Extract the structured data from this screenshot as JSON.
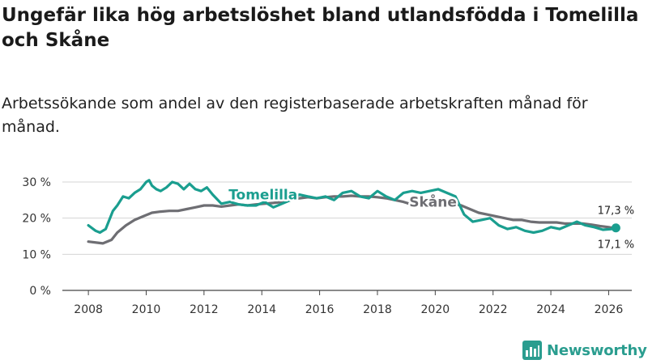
{
  "title": "Ungefär lika hög arbetslöshet bland utlandsfödda i Tomelilla och Skåne",
  "subtitle": "Arbetssökande som andel av den registerbaserade arbetskraften månad för månad.",
  "brand": {
    "name": "Newsworthy",
    "icon": "bar-chart-logo-icon",
    "color": "#2a9d8f"
  },
  "chart_data": {
    "type": "line",
    "x_ticks": [
      2008,
      2010,
      2012,
      2014,
      2016,
      2018,
      2020,
      2022,
      2024,
      2026
    ],
    "x_tick_labels": [
      "2008",
      "2010",
      "2012",
      "2014",
      "2016",
      "2018",
      "2020",
      "2022",
      "2024",
      "2026"
    ],
    "xlim": [
      2007.1,
      2026.8
    ],
    "ylim": [
      0,
      30
    ],
    "y_ticks": [
      0,
      10,
      20,
      30
    ],
    "y_tick_labels": [
      "0 %",
      "10 %",
      "20 %",
      "30 %"
    ],
    "grid": true,
    "series": [
      {
        "name": "Tomelilla",
        "label": "Tomelilla",
        "color": "#1a9e8f",
        "end_label": "17,3 %",
        "x": [
          2008.0,
          2008.25,
          2008.4,
          2008.6,
          2008.85,
          2009.0,
          2009.2,
          2009.4,
          2009.6,
          2009.8,
          2010.0,
          2010.1,
          2010.2,
          2010.35,
          2010.5,
          2010.7,
          2010.9,
          2011.1,
          2011.3,
          2011.5,
          2011.7,
          2011.9,
          2012.1,
          2012.3,
          2012.6,
          2012.9,
          2013.2,
          2013.5,
          2013.8,
          2014.1,
          2014.4,
          2014.7,
          2015.0,
          2015.3,
          2015.6,
          2015.9,
          2016.2,
          2016.5,
          2016.8,
          2017.1,
          2017.4,
          2017.7,
          2018.0,
          2018.3,
          2018.6,
          2018.9,
          2019.2,
          2019.5,
          2019.8,
          2020.1,
          2020.4,
          2020.7,
          2021.0,
          2021.3,
          2021.6,
          2021.9,
          2022.2,
          2022.5,
          2022.8,
          2023.1,
          2023.4,
          2023.7,
          2024.0,
          2024.3,
          2024.6,
          2024.9,
          2025.2,
          2025.5,
          2025.8,
          2026.1,
          2026.25
        ],
        "y": [
          18.0,
          16.5,
          16.0,
          17.0,
          22.0,
          23.5,
          26.0,
          25.5,
          27.0,
          28.0,
          30.0,
          30.5,
          29.0,
          28.0,
          27.5,
          28.5,
          30.0,
          29.5,
          28.0,
          29.5,
          28.0,
          27.5,
          28.5,
          26.5,
          24.0,
          24.5,
          23.8,
          23.5,
          23.5,
          24.5,
          23.0,
          24.0,
          25.0,
          26.5,
          26.0,
          25.5,
          26.0,
          25.0,
          27.0,
          27.5,
          26.0,
          25.5,
          27.5,
          26.0,
          25.0,
          27.0,
          27.5,
          27.0,
          27.5,
          28.0,
          27.0,
          26.0,
          21.0,
          19.0,
          19.5,
          20.0,
          18.0,
          17.0,
          17.5,
          16.5,
          16.0,
          16.5,
          17.5,
          17.0,
          18.0,
          19.0,
          18.0,
          17.5,
          16.8,
          17.0,
          17.3
        ]
      },
      {
        "name": "Skåne",
        "label": "Skåne",
        "color": "#6e6e73",
        "end_label": "17,1 %",
        "x": [
          2008.0,
          2008.3,
          2008.5,
          2008.8,
          2009.0,
          2009.3,
          2009.6,
          2009.9,
          2010.2,
          2010.5,
          2010.8,
          2011.1,
          2011.4,
          2011.7,
          2012.0,
          2012.3,
          2012.6,
          2012.9,
          2013.2,
          2013.5,
          2013.8,
          2014.1,
          2014.4,
          2014.7,
          2015.0,
          2015.3,
          2015.6,
          2015.9,
          2016.2,
          2016.5,
          2016.8,
          2017.1,
          2017.4,
          2017.7,
          2018.0,
          2018.3,
          2018.6,
          2018.9,
          2019.1,
          2019.4,
          2019.7,
          2020.0,
          2020.3,
          2020.6,
          2020.9,
          2021.2,
          2021.5,
          2021.8,
          2022.1,
          2022.4,
          2022.7,
          2023.0,
          2023.3,
          2023.6,
          2023.9,
          2024.2,
          2024.5,
          2024.8,
          2025.1,
          2025.4,
          2025.7,
          2026.0,
          2026.25
        ],
        "y": [
          13.5,
          13.2,
          13.0,
          14.0,
          16.0,
          18.0,
          19.5,
          20.5,
          21.5,
          21.8,
          22.0,
          22.0,
          22.5,
          23.0,
          23.5,
          23.5,
          23.2,
          23.5,
          23.8,
          23.5,
          23.8,
          24.0,
          24.2,
          24.5,
          25.0,
          25.5,
          25.8,
          25.5,
          25.8,
          26.0,
          26.0,
          26.2,
          26.0,
          26.0,
          25.8,
          25.5,
          25.0,
          24.5,
          24.0,
          24.2,
          24.5,
          24.5,
          24.2,
          24.0,
          23.5,
          22.5,
          21.5,
          21.0,
          20.5,
          20.0,
          19.5,
          19.5,
          19.0,
          18.8,
          18.8,
          18.8,
          18.5,
          18.5,
          18.5,
          18.2,
          17.8,
          17.5,
          17.1
        ]
      }
    ]
  }
}
